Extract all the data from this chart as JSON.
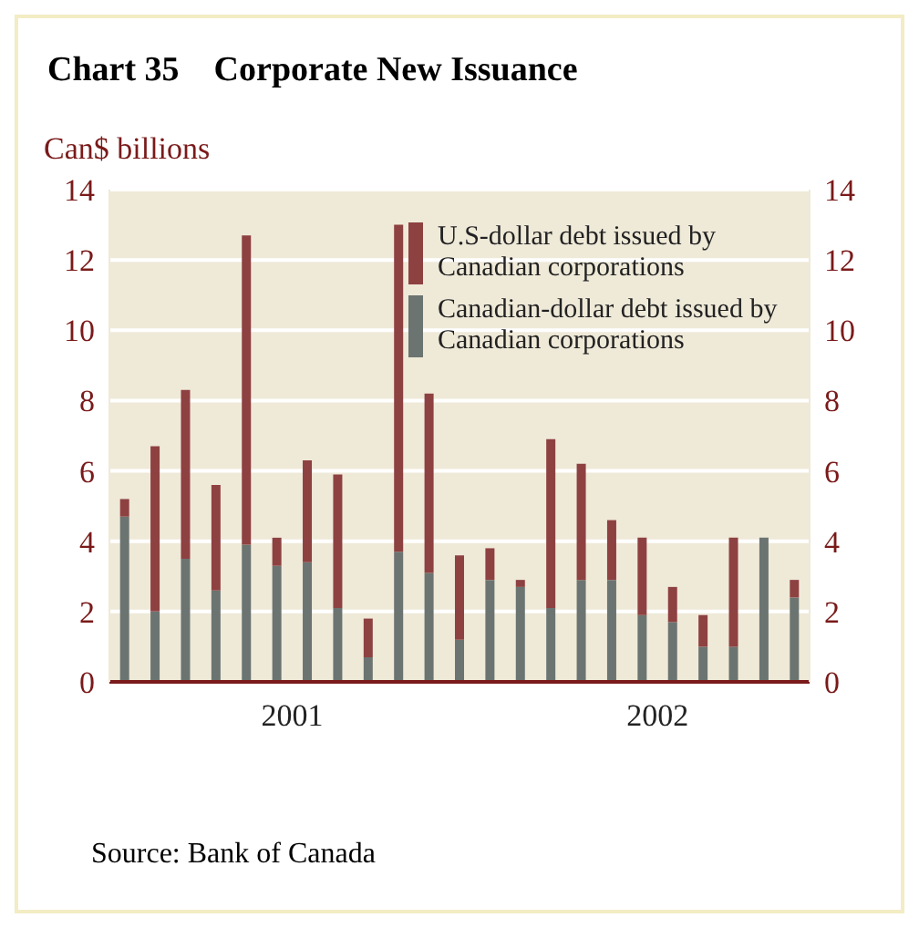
{
  "chart_data": {
    "type": "bar",
    "title": "Chart 35    Corporate New Issuance",
    "ylabel": "Can$ billions",
    "annotations": [
      "Source: Bank of Canada"
    ],
    "categories": [
      null,
      null,
      null,
      null,
      null,
      "2001",
      null,
      null,
      null,
      null,
      null,
      null,
      null,
      null,
      null,
      null,
      null,
      "2002",
      null,
      null,
      null,
      null,
      null
    ],
    "series": [
      {
        "name": "Canadian-dollar debt issued by Canadian corporations",
        "color": "#6b7471",
        "values": [
          4.7,
          2.0,
          3.5,
          2.6,
          3.9,
          3.3,
          3.4,
          2.1,
          0.7,
          3.7,
          3.1,
          1.2,
          2.9,
          2.7,
          2.1,
          2.9,
          2.9,
          1.9,
          1.7,
          1.0,
          1.0,
          4.1,
          2.4
        ]
      },
      {
        "name": "U.S-dollar debt issued by Canadian corporations",
        "color": "#8e4141",
        "values": [
          0.5,
          4.7,
          4.8,
          3.0,
          8.8,
          0.8,
          2.9,
          3.8,
          1.1,
          9.3,
          5.1,
          2.4,
          0.9,
          0.2,
          4.8,
          3.3,
          1.7,
          2.2,
          1.0,
          0.9,
          3.1,
          0,
          0.5
        ]
      }
    ],
    "stacked": true,
    "ylim": [
      0,
      14
    ],
    "yticks": [
      0,
      2,
      4,
      6,
      8,
      10,
      12,
      14
    ],
    "y2lim": [
      0,
      14
    ],
    "y2ticks": [
      0,
      2,
      4,
      6,
      8,
      10,
      12,
      14
    ],
    "grid": "y",
    "legend": "top right"
  }
}
